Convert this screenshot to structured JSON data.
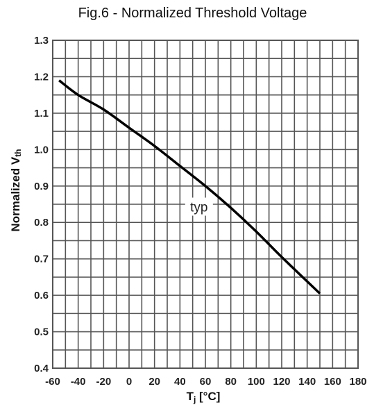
{
  "chart_data": {
    "type": "line",
    "title": "Fig.6 - Normalized Threshold Voltage",
    "xlabel_main": "T",
    "xlabel_sub": "j",
    "xlabel_unit": " [°C]",
    "ylabel_main": "Normalized V",
    "ylabel_sub": "th",
    "xlim": [
      -60,
      180
    ],
    "ylim": [
      0.4,
      1.3
    ],
    "x_ticks": [
      -60,
      -40,
      -20,
      0,
      20,
      40,
      60,
      80,
      100,
      120,
      140,
      160,
      180
    ],
    "y_ticks": [
      0.4,
      0.5,
      0.6,
      0.7,
      0.8,
      0.9,
      1.0,
      1.1,
      1.2,
      1.3
    ],
    "x_tick_labels": [
      "-60",
      "-40",
      "-20",
      "0",
      "20",
      "40",
      "60",
      "80",
      "100",
      "120",
      "140",
      "160",
      "180"
    ],
    "y_tick_labels": [
      "0.4",
      "0.5",
      "0.6",
      "0.7",
      "0.8",
      "0.9",
      "1.0",
      "1.1",
      "1.2",
      "1.3"
    ],
    "grid": true,
    "minor_grid_per_major": 2,
    "series": [
      {
        "name": "typ",
        "color": "#000000",
        "x": [
          -55,
          -40,
          -20,
          0,
          20,
          40,
          60,
          80,
          100,
          120,
          150
        ],
        "y": [
          1.19,
          1.15,
          1.11,
          1.06,
          1.01,
          0.955,
          0.9,
          0.84,
          0.775,
          0.705,
          0.605
        ]
      }
    ],
    "annotations": [
      {
        "text": "typ",
        "x": 55,
        "y": 0.83
      }
    ],
    "colors": {
      "grid": "#555555",
      "frame": "#555555",
      "line": "#000000"
    }
  }
}
